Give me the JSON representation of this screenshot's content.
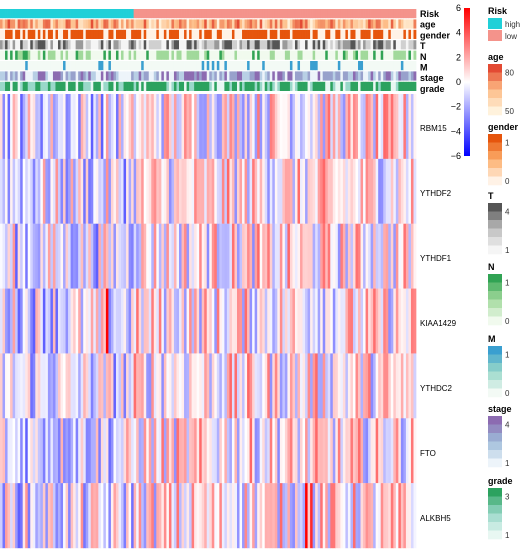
{
  "chart_data": {
    "type": "heatmap",
    "genes": [
      "RBM15",
      "YTHDF2",
      "YTHDF1",
      "KIAA1429",
      "YTHDC2",
      "FTO",
      "ALKBH5"
    ],
    "columns": 165,
    "value_range": [
      -6,
      6
    ],
    "annotation_tracks": [
      "Risk",
      "age",
      "gender",
      "T",
      "N",
      "M",
      "stage",
      "grade"
    ],
    "risk_groups": [
      {
        "label": "high",
        "count": 53
      },
      {
        "label": "low",
        "count": 112
      }
    ],
    "strong_cells": [
      {
        "gene": "KIAA1429",
        "column": 42,
        "value": 6
      },
      {
        "gene": "ALKBH5",
        "column": 121,
        "value": 6
      },
      {
        "gene": "ALKBH5",
        "column": 123,
        "value": 5
      }
    ]
  },
  "legend": {
    "colorbar": {
      "ticks": [
        "6",
        "4",
        "2",
        "0",
        "−2",
        "−4",
        "−6"
      ],
      "colors": [
        "#ff0000",
        "#ffffff",
        "#0000ff"
      ]
    },
    "blocks": [
      {
        "title": "Risk",
        "items": [
          {
            "label": "high",
            "color": "#20d0d8"
          },
          {
            "label": "low",
            "color": "#f4938b"
          }
        ]
      },
      {
        "title": "age",
        "ticks": [
          "80",
          "50"
        ],
        "colors": [
          "#e34a33",
          "#fdbb84",
          "#fff2dc"
        ]
      },
      {
        "title": "gender",
        "ticks": [
          "1",
          "0"
        ],
        "colors": [
          "#e6550d",
          "#fdae6b",
          "#fff2e6"
        ]
      },
      {
        "title": "T",
        "ticks": [
          "4",
          "1"
        ],
        "colors": [
          "#555555",
          "#bdbdbd",
          "#f5f5f5"
        ]
      },
      {
        "title": "N",
        "ticks": [
          "1",
          "0"
        ],
        "colors": [
          "#31a354",
          "#a1d99b",
          "#f1faee"
        ]
      },
      {
        "title": "M",
        "ticks": [
          "1",
          "0"
        ],
        "colors": [
          "#3a9fd0",
          "#99d8c9",
          "#f3faf5"
        ]
      },
      {
        "title": "stage",
        "ticks": [
          "4",
          "1"
        ],
        "colors": [
          "#8c6bb1",
          "#9ebcda",
          "#edf4fa"
        ]
      },
      {
        "title": "grade",
        "ticks": [
          "3",
          "1"
        ],
        "colors": [
          "#2ca25f",
          "#99d8c9",
          "#e8f7f2"
        ]
      }
    ]
  }
}
